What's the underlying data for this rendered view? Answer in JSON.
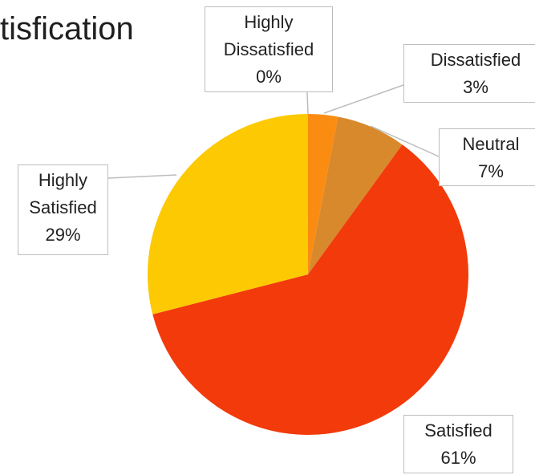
{
  "chart_data": {
    "type": "pie",
    "title": "tisfication",
    "categories": [
      "Highly Dissatisfied",
      "Dissatisfied",
      "Neutral",
      "Satisfied",
      "Highly Satisfied"
    ],
    "values": [
      0,
      3,
      7,
      61,
      29
    ],
    "value_labels": [
      "0%",
      "3%",
      "7%",
      "61%",
      "29%"
    ],
    "colors": [
      "#f5a000",
      "#fb8c12",
      "#d8892c",
      "#f23a0b",
      "#fcc903"
    ]
  }
}
